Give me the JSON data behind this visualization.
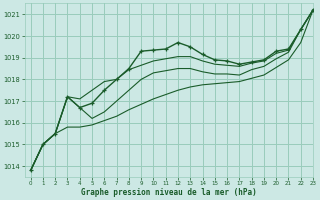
{
  "xlabel": "Graphe pression niveau de la mer (hPa)",
  "bg_color": "#cce8e4",
  "grid_color": "#99ccbb",
  "line_color": "#1a5c2a",
  "text_color": "#1a5c2a",
  "xlim": [
    -0.5,
    23
  ],
  "ylim": [
    1013.5,
    1021.5
  ],
  "yticks": [
    1014,
    1015,
    1016,
    1017,
    1018,
    1019,
    1020,
    1021
  ],
  "xticks": [
    0,
    1,
    2,
    3,
    4,
    5,
    6,
    7,
    8,
    9,
    10,
    11,
    12,
    13,
    14,
    15,
    16,
    17,
    18,
    19,
    20,
    21,
    22,
    23
  ],
  "series": [
    {
      "y": [
        1013.8,
        1015.0,
        1015.5,
        1017.2,
        1016.7,
        1016.9,
        1017.5,
        1018.0,
        1018.5,
        1019.3,
        1019.35,
        1019.4,
        1019.7,
        1019.5,
        1019.15,
        1018.9,
        1018.85,
        1018.7,
        1018.8,
        1018.9,
        1019.3,
        1019.4,
        1020.3,
        1021.2
      ],
      "marker": true,
      "linewidth": 1.0
    },
    {
      "y": [
        1013.8,
        1015.0,
        1015.5,
        1017.2,
        1017.1,
        1017.5,
        1017.9,
        1018.0,
        1018.45,
        1018.65,
        1018.85,
        1018.95,
        1019.05,
        1019.05,
        1018.85,
        1018.7,
        1018.65,
        1018.6,
        1018.75,
        1018.85,
        1019.2,
        1019.35,
        1020.3,
        1021.2
      ],
      "marker": false,
      "linewidth": 0.8
    },
    {
      "y": [
        1013.8,
        1015.0,
        1015.5,
        1017.2,
        1016.7,
        1016.2,
        1016.5,
        1017.0,
        1017.5,
        1018.0,
        1018.3,
        1018.4,
        1018.5,
        1018.5,
        1018.35,
        1018.25,
        1018.25,
        1018.2,
        1018.45,
        1018.6,
        1018.95,
        1019.25,
        1020.3,
        1021.2
      ],
      "marker": false,
      "linewidth": 0.8
    },
    {
      "y": [
        1013.8,
        1015.0,
        1015.5,
        1015.8,
        1015.8,
        1015.9,
        1016.1,
        1016.3,
        1016.6,
        1016.85,
        1017.1,
        1017.3,
        1017.5,
        1017.65,
        1017.75,
        1017.8,
        1017.85,
        1017.9,
        1018.05,
        1018.2,
        1018.55,
        1018.9,
        1019.7,
        1021.2
      ],
      "marker": false,
      "linewidth": 0.8
    }
  ]
}
